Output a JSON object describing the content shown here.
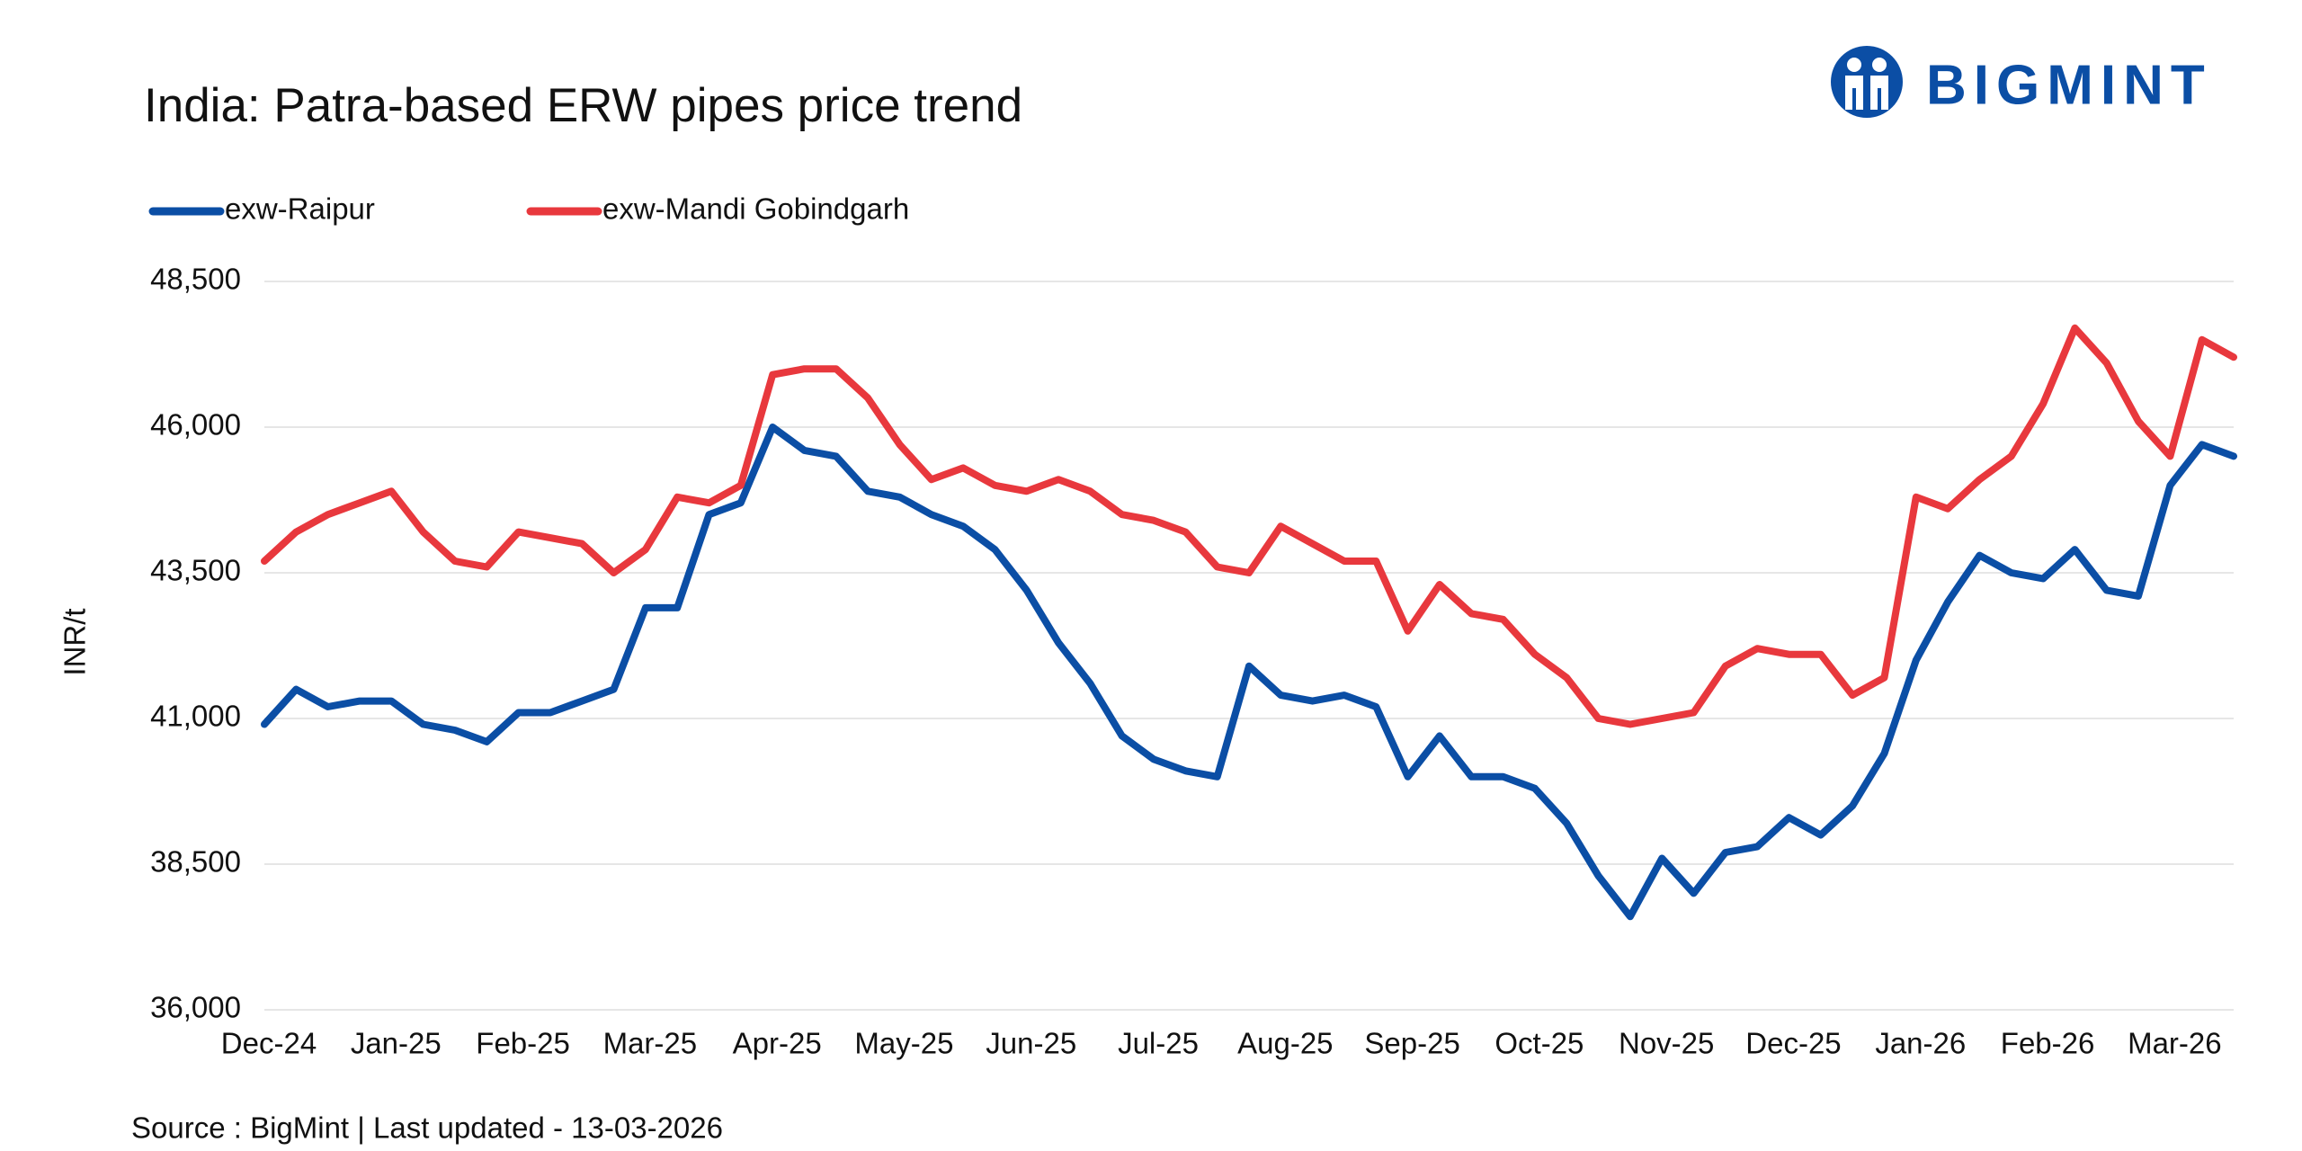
{
  "chart_data": {
    "type": "line",
    "title": "India: Patra-based ERW pipes price trend",
    "logo": "BIGMINT",
    "ylabel": "INR/t",
    "source": "Source : BigMint | Last updated - 13-03-2026",
    "categories": [
      "Dec-24",
      null,
      null,
      null,
      "Jan-25",
      null,
      null,
      null,
      "Feb-25",
      null,
      null,
      null,
      "Mar-25",
      null,
      null,
      null,
      "Apr-25",
      null,
      null,
      null,
      "May-25",
      null,
      null,
      null,
      "Jun-25",
      null,
      null,
      null,
      "Jul-25",
      null,
      null,
      null,
      "Aug-25",
      null,
      null,
      null,
      "Sep-25",
      null,
      null,
      null,
      "Oct-25",
      null,
      null,
      null,
      "Nov-25",
      null,
      null,
      null,
      "Dec-25",
      null,
      null,
      null,
      "Jan-26",
      null,
      null,
      null,
      "Feb-26",
      null,
      null,
      null,
      "Mar-26",
      null,
      null
    ],
    "series": [
      {
        "name": "exw-Raipur",
        "color": "#0b4ea5",
        "values": [
          40900,
          41500,
          41200,
          41300,
          41300,
          40900,
          40800,
          40600,
          41100,
          41100,
          41300,
          41500,
          42900,
          42900,
          44500,
          44700,
          46000,
          45600,
          45500,
          44900,
          44800,
          44500,
          44300,
          43900,
          43200,
          42300,
          41600,
          40700,
          40300,
          40100,
          40000,
          41900,
          41400,
          41300,
          41400,
          41200,
          40000,
          40700,
          40000,
          40000,
          39800,
          39200,
          38300,
          37600,
          38600,
          38000,
          38700,
          38800,
          39300,
          39000,
          39500,
          40400,
          42000,
          43000,
          43800,
          43500,
          43400,
          43900,
          43200,
          43100,
          45000,
          45700,
          45500
        ]
      },
      {
        "name": "exw-Mandi Gobindgarh",
        "color": "#e8383d",
        "values": [
          43700,
          44200,
          44500,
          44700,
          44900,
          44200,
          43700,
          43600,
          44200,
          44100,
          44000,
          43500,
          43900,
          44800,
          44700,
          45000,
          46900,
          47000,
          47000,
          46500,
          45700,
          45100,
          45300,
          45000,
          44900,
          45100,
          44900,
          44500,
          44400,
          44200,
          43600,
          43500,
          44300,
          44000,
          43700,
          43700,
          42500,
          43300,
          42800,
          42700,
          42100,
          41700,
          41000,
          40900,
          41000,
          41100,
          41900,
          42200,
          42100,
          42100,
          41400,
          41700,
          44800,
          44600,
          45100,
          45500,
          46400,
          47700,
          47100,
          46100,
          45500,
          47500,
          47200
        ]
      }
    ],
    "ylim": [
      36000,
      48500
    ],
    "yticks": [
      {
        "value": 36000,
        "label": "36,000"
      },
      {
        "value": 38500,
        "label": "38,500"
      },
      {
        "value": 41000,
        "label": "41,000"
      },
      {
        "value": 43500,
        "label": "43,500"
      },
      {
        "value": 46000,
        "label": "46,000"
      },
      {
        "value": 48500,
        "label": "48,500"
      }
    ],
    "grid": true
  }
}
